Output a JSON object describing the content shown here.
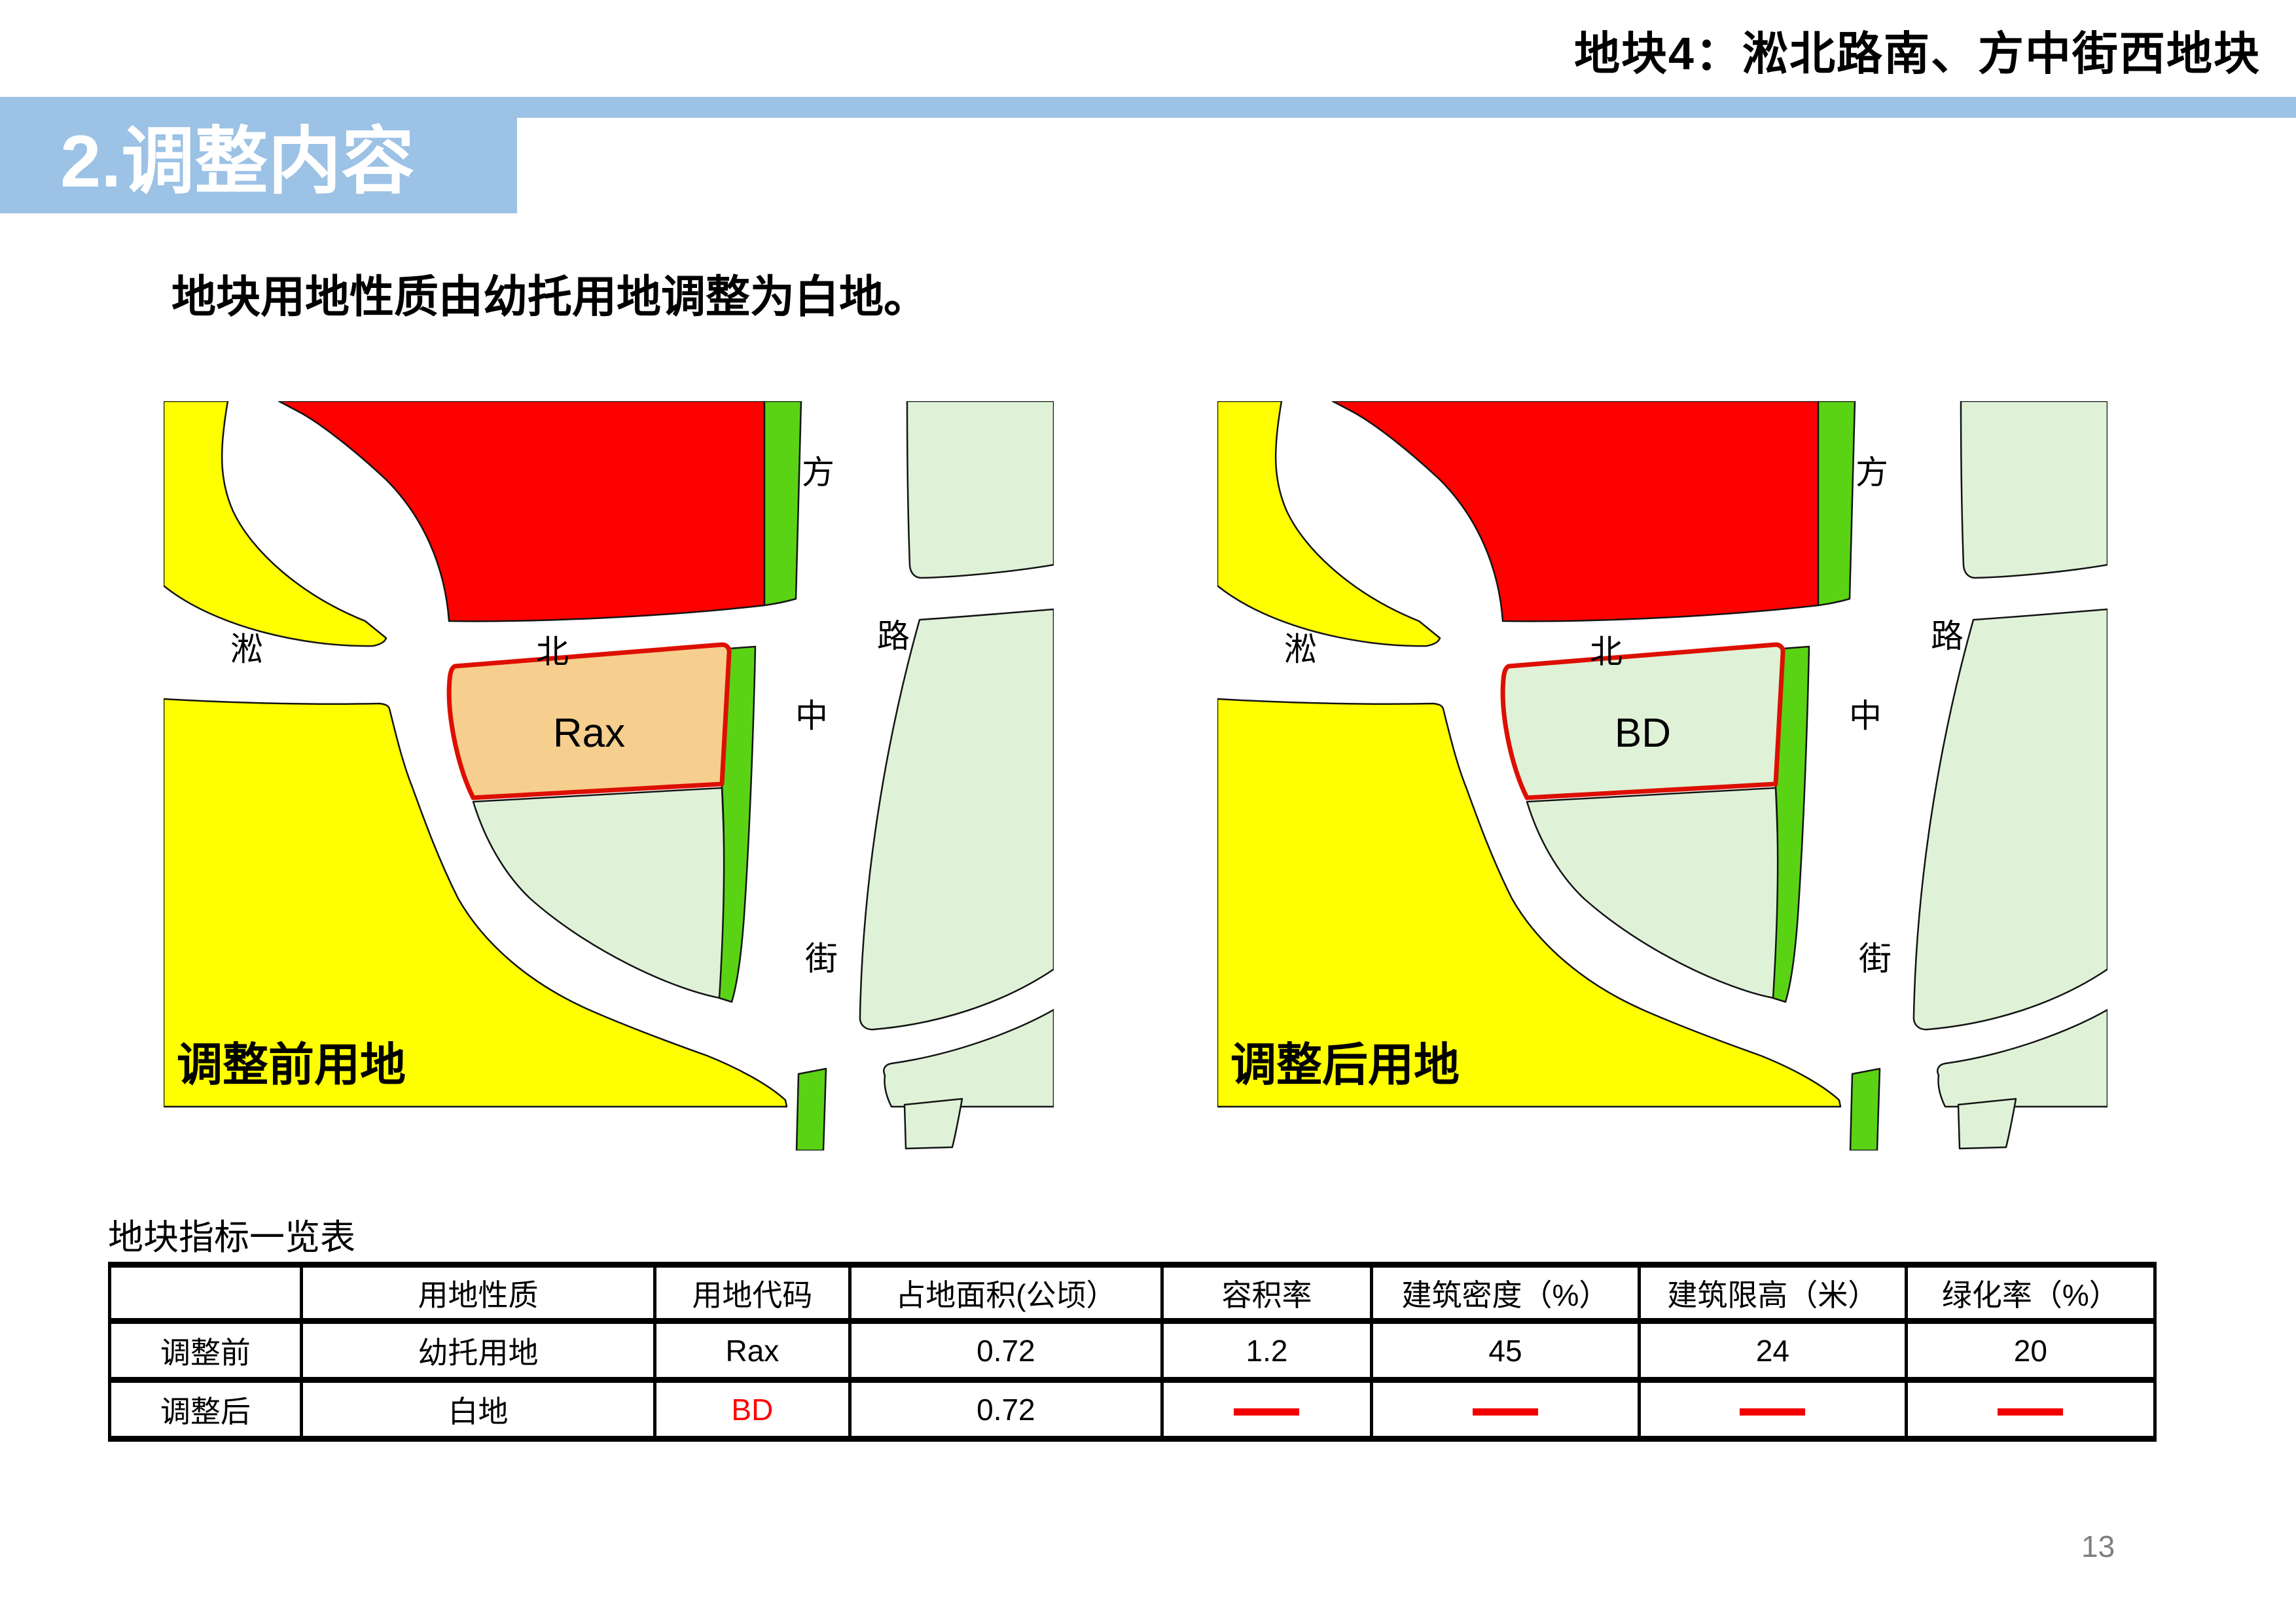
{
  "header": {
    "title": "地块4：淞北路南、方中街西地块"
  },
  "banner": {
    "label": "2.调整内容"
  },
  "intro_text": "地块用地性质由幼托用地调整为白地。",
  "maps": {
    "road_labels": {
      "horizontal": [
        "淞",
        "北",
        "路"
      ],
      "vertical": [
        "方",
        "中",
        "街"
      ]
    },
    "before": {
      "caption": "调整前用地",
      "plot_code": "Rax",
      "plot_fill": "#F6CE8E"
    },
    "after": {
      "caption": "调整后用地",
      "plot_code": "BD",
      "plot_fill": "#DFF2D7"
    },
    "colors": {
      "yellow": "#FFFF00",
      "red": "#FE0000",
      "green_strip": "#5AD315",
      "pale_green": "#DFF2D7",
      "plot_border": "#DD0F00",
      "outline": "#141414",
      "banner_blue": "#9CC2E5"
    }
  },
  "table": {
    "title": "地块指标一览表",
    "headers": [
      "",
      "用地性质",
      "用地代码",
      "占地面积(公顷）",
      "容积率",
      "建筑密度（%）",
      "建筑限高（米）",
      "绿化率（%）"
    ],
    "rows": [
      {
        "cells": [
          {
            "t": "调整前"
          },
          {
            "t": "幼托用地"
          },
          {
            "t": "Rax"
          },
          {
            "t": "0.72"
          },
          {
            "t": "1.2"
          },
          {
            "t": "45"
          },
          {
            "t": "24"
          },
          {
            "t": "20"
          }
        ]
      },
      {
        "cells": [
          {
            "t": "调整后"
          },
          {
            "t": "白地"
          },
          {
            "t": "BD",
            "red": true
          },
          {
            "t": "0.72"
          },
          {
            "dash": true
          },
          {
            "dash": true
          },
          {
            "dash": true
          },
          {
            "dash": true
          }
        ]
      }
    ]
  },
  "page_number": "13"
}
